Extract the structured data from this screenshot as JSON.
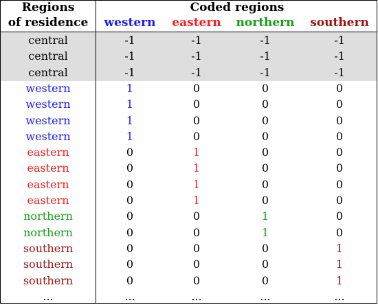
{
  "header": {
    "regions_line1": "Regions",
    "regions_line2": "of residence",
    "coded": "Coded regions",
    "cols": [
      "western",
      "eastern",
      "northern",
      "southern"
    ]
  },
  "colors": {
    "western": "#1a1aff",
    "eastern": "#ff1a1a",
    "northern": "#16a016",
    "southern": "#a01010",
    "shade": "#dedede"
  },
  "rows": [
    {
      "region": "central",
      "values": [
        "-1",
        "-1",
        "-1",
        "-1"
      ],
      "shaded": true
    },
    {
      "region": "central",
      "values": [
        "-1",
        "-1",
        "-1",
        "-1"
      ],
      "shaded": true
    },
    {
      "region": "central",
      "values": [
        "-1",
        "-1",
        "-1",
        "-1"
      ],
      "shaded": true
    },
    {
      "region": "western",
      "values": [
        "1",
        "0",
        "0",
        "0"
      ]
    },
    {
      "region": "western",
      "values": [
        "1",
        "0",
        "0",
        "0"
      ]
    },
    {
      "region": "western",
      "values": [
        "1",
        "0",
        "0",
        "0"
      ]
    },
    {
      "region": "western",
      "values": [
        "1",
        "0",
        "0",
        "0"
      ]
    },
    {
      "region": "eastern",
      "values": [
        "0",
        "1",
        "0",
        "0"
      ]
    },
    {
      "region": "eastern",
      "values": [
        "0",
        "1",
        "0",
        "0"
      ]
    },
    {
      "region": "eastern",
      "values": [
        "0",
        "1",
        "0",
        "0"
      ]
    },
    {
      "region": "eastern",
      "values": [
        "0",
        "1",
        "0",
        "0"
      ]
    },
    {
      "region": "northern",
      "values": [
        "0",
        "0",
        "1",
        "0"
      ]
    },
    {
      "region": "northern",
      "values": [
        "0",
        "0",
        "1",
        "0"
      ]
    },
    {
      "region": "southern",
      "values": [
        "0",
        "0",
        "0",
        "1"
      ]
    },
    {
      "region": "southern",
      "values": [
        "0",
        "0",
        "0",
        "1"
      ]
    },
    {
      "region": "southern",
      "values": [
        "0",
        "0",
        "0",
        "1"
      ]
    },
    {
      "region": "...",
      "values": [
        "...",
        "...",
        "...",
        "..."
      ]
    }
  ]
}
